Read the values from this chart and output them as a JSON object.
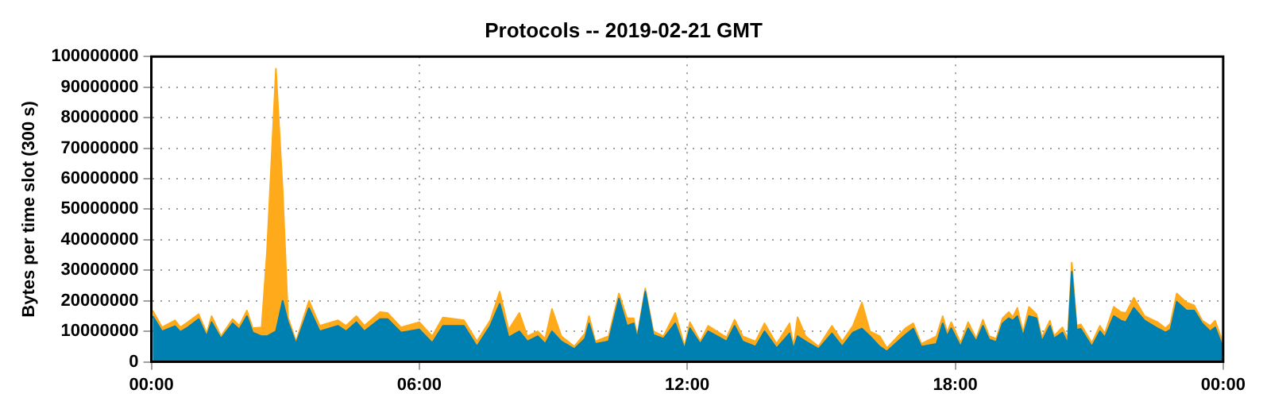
{
  "chart_data": {
    "type": "area",
    "stacked": true,
    "title": "Protocols -- 2019-02-21 GMT",
    "ylabel": "Bytes per time slot (300 s)",
    "x": [
      0.03,
      0.24,
      0.53,
      0.65,
      0.82,
      1.06,
      1.24,
      1.35,
      1.56,
      1.82,
      1.97,
      2.14,
      2.27,
      2.47,
      2.59,
      2.79,
      2.94,
      3.06,
      3.24,
      3.53,
      3.77,
      4.18,
      4.36,
      4.59,
      4.77,
      5.12,
      5.29,
      5.59,
      6.0,
      6.29,
      6.53,
      7.0,
      7.29,
      7.59,
      7.8,
      8.0,
      8.24,
      8.42,
      8.65,
      8.82,
      8.97,
      9.18,
      9.47,
      9.71,
      9.8,
      9.94,
      10.24,
      10.47,
      10.65,
      10.8,
      10.88,
      11.06,
      11.24,
      11.47,
      11.73,
      11.94,
      12.06,
      12.29,
      12.47,
      12.88,
      13.06,
      13.24,
      13.53,
      13.73,
      14.0,
      14.29,
      14.38,
      14.47,
      14.65,
      14.94,
      15.24,
      15.47,
      15.71,
      15.91,
      16.09,
      16.31,
      16.47,
      16.88,
      17.06,
      17.24,
      17.58,
      17.72,
      17.82,
      17.91,
      18.12,
      18.29,
      18.47,
      18.62,
      18.76,
      18.92,
      19.06,
      19.2,
      19.29,
      19.39,
      19.52,
      19.65,
      19.82,
      19.94,
      20.12,
      20.21,
      20.4,
      20.52,
      20.61,
      20.72,
      20.81,
      21.06,
      21.24,
      21.35,
      21.55,
      21.71,
      21.82,
      22.0,
      22.24,
      22.53,
      22.71,
      22.82,
      22.96,
      23.18,
      23.35,
      23.53,
      23.71,
      23.82,
      24.0
    ],
    "series": [
      {
        "color": "#0080b0",
        "values": [
          15000000,
          10000000,
          11700000,
          9800000,
          11300000,
          14000000,
          8400000,
          13000000,
          7600000,
          12600000,
          10600000,
          15000000,
          9600000,
          8400000,
          8400000,
          10000000,
          20000000,
          13000000,
          5900000,
          17600000,
          10000000,
          11800000,
          10000000,
          13000000,
          10000000,
          14000000,
          14000000,
          9600000,
          10600000,
          6200000,
          11800000,
          11800000,
          5000000,
          11800000,
          19000000,
          8000000,
          10000000,
          6700000,
          8400000,
          5900000,
          10000000,
          6700000,
          4200000,
          7600000,
          12600000,
          5900000,
          6700000,
          20700000,
          11800000,
          12600000,
          7600000,
          23000000,
          8800000,
          7600000,
          12600000,
          4200000,
          11000000,
          5900000,
          10000000,
          6700000,
          11800000,
          6700000,
          5000000,
          10000000,
          4500000,
          9300000,
          4200000,
          8400000,
          6700000,
          4200000,
          9300000,
          5000000,
          9600000,
          10900000,
          8400000,
          5000000,
          3400000,
          8800000,
          10900000,
          5000000,
          5900000,
          12600000,
          8400000,
          11000000,
          5000000,
          11000000,
          6700000,
          11800000,
          7300000,
          6500000,
          12600000,
          14300000,
          13500000,
          15000000,
          8400000,
          15000000,
          14300000,
          6700000,
          11800000,
          7600000,
          9600000,
          5900000,
          29500000,
          10500000,
          10800000,
          5000000,
          10000000,
          8000000,
          15000000,
          13500000,
          13000000,
          17700000,
          13500000,
          11000000,
          9600000,
          10500000,
          19700000,
          16800000,
          16800000,
          12600000,
          10000000,
          11300000,
          4500000
        ]
      },
      {
        "color": "#ffaa1a",
        "values": [
          1800000,
          1300000,
          1900000,
          1500000,
          1700000,
          1600000,
          900000,
          2000000,
          800000,
          1400000,
          1200000,
          1800000,
          1400000,
          2900000,
          27800000,
          86000000,
          36400000,
          1500000,
          800000,
          2400000,
          1800000,
          1800000,
          1800000,
          2000000,
          1800000,
          2300000,
          2000000,
          1700000,
          2400000,
          2200000,
          2700000,
          1800000,
          1700000,
          1800000,
          4000000,
          2500000,
          6000000,
          1700000,
          1600000,
          1700000,
          7300000,
          1700000,
          800000,
          1700000,
          2400000,
          800000,
          1700000,
          1700000,
          2500000,
          1700000,
          800000,
          1000000,
          1200000,
          800000,
          3400000,
          800000,
          2000000,
          800000,
          1800000,
          1300000,
          2000000,
          1700000,
          1700000,
          2600000,
          1400000,
          3300000,
          800000,
          6200000,
          1700000,
          800000,
          2500000,
          1700000,
          2200000,
          8500000,
          1600000,
          3400000,
          1100000,
          2100000,
          1700000,
          900000,
          2500000,
          2400000,
          1200000,
          2000000,
          1200000,
          2000000,
          900000,
          2000000,
          1100000,
          1100000,
          1700000,
          2000000,
          1100000,
          2700000,
          1200000,
          3000000,
          1300000,
          1300000,
          1700000,
          800000,
          1700000,
          1700000,
          3000000,
          1300000,
          1500000,
          1200000,
          1800000,
          1300000,
          3000000,
          2800000,
          3000000,
          3300000,
          1500000,
          2000000,
          1400000,
          2100000,
          2700000,
          2600000,
          1700000,
          900000,
          1800000,
          2200000,
          1400000
        ]
      }
    ],
    "xlim": [
      0,
      24
    ],
    "xticks": [
      {
        "value": 0,
        "label": "00:00"
      },
      {
        "value": 6,
        "label": "06:00"
      },
      {
        "value": 12,
        "label": "12:00"
      },
      {
        "value": 18,
        "label": "18:00"
      },
      {
        "value": 24,
        "label": "00:00"
      }
    ],
    "ylim": [
      0,
      100000000
    ],
    "yticks": [
      0,
      10000000,
      20000000,
      30000000,
      40000000,
      50000000,
      60000000,
      70000000,
      80000000,
      90000000,
      100000000
    ],
    "grid": true,
    "legend": false,
    "marker": "none"
  }
}
